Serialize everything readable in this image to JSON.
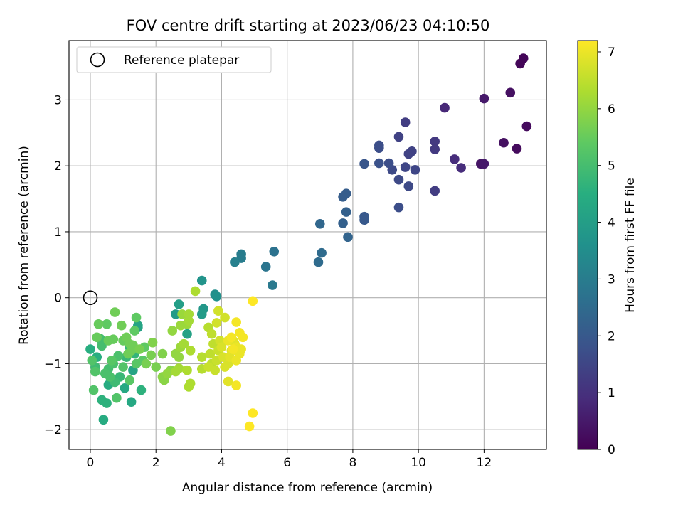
{
  "chart_data": {
    "type": "scatter",
    "title": "FOV centre drift starting at 2023/06/23 04:10:50",
    "xlabel": "Angular distance from reference (arcmin)",
    "ylabel": "Rotation from reference (arcmin)",
    "xlim": [
      -0.65,
      13.9
    ],
    "ylim": [
      -2.3,
      3.9
    ],
    "xticks": [
      0,
      2,
      4,
      6,
      8,
      10,
      12
    ],
    "yticks": [
      -2,
      -1,
      0,
      1,
      2,
      3
    ],
    "grid": true,
    "legend": {
      "placement": "top-left",
      "entries": [
        "Reference platepar"
      ]
    },
    "reference_point": {
      "x": 0,
      "y": 0
    },
    "colorbar": {
      "label": "Hours from first FF file",
      "range": [
        0,
        7.2
      ],
      "ticks": [
        0,
        1,
        2,
        3,
        4,
        5,
        6,
        7
      ],
      "colormap": "viridis"
    },
    "points": [
      {
        "x": 13.2,
        "y": 3.63,
        "h": 0.1
      },
      {
        "x": 13.1,
        "y": 3.55,
        "h": 0.1
      },
      {
        "x": 12.8,
        "y": 3.11,
        "h": 0.3
      },
      {
        "x": 13.3,
        "y": 2.6,
        "h": 0.2
      },
      {
        "x": 12.0,
        "y": 3.02,
        "h": 0.5
      },
      {
        "x": 12.6,
        "y": 2.35,
        "h": 0.3
      },
      {
        "x": 13.0,
        "y": 2.26,
        "h": 0.2
      },
      {
        "x": 11.9,
        "y": 2.03,
        "h": 0.4
      },
      {
        "x": 12.0,
        "y": 2.03,
        "h": 0.5
      },
      {
        "x": 10.8,
        "y": 2.88,
        "h": 0.8
      },
      {
        "x": 11.1,
        "y": 2.1,
        "h": 0.9
      },
      {
        "x": 11.3,
        "y": 1.97,
        "h": 0.9
      },
      {
        "x": 10.5,
        "y": 2.37,
        "h": 1.2
      },
      {
        "x": 10.5,
        "y": 2.25,
        "h": 1.2
      },
      {
        "x": 10.5,
        "y": 1.62,
        "h": 1.3
      },
      {
        "x": 9.6,
        "y": 2.66,
        "h": 1.3
      },
      {
        "x": 9.4,
        "y": 2.44,
        "h": 1.4
      },
      {
        "x": 9.8,
        "y": 2.22,
        "h": 1.4
      },
      {
        "x": 9.7,
        "y": 2.18,
        "h": 1.4
      },
      {
        "x": 9.6,
        "y": 1.98,
        "h": 1.5
      },
      {
        "x": 9.9,
        "y": 1.94,
        "h": 1.5
      },
      {
        "x": 9.7,
        "y": 1.69,
        "h": 1.6
      },
      {
        "x": 9.4,
        "y": 1.79,
        "h": 1.6
      },
      {
        "x": 9.4,
        "y": 1.37,
        "h": 1.7
      },
      {
        "x": 9.2,
        "y": 1.94,
        "h": 1.6
      },
      {
        "x": 9.1,
        "y": 2.04,
        "h": 1.7
      },
      {
        "x": 8.8,
        "y": 2.31,
        "h": 1.7
      },
      {
        "x": 8.8,
        "y": 2.27,
        "h": 1.7
      },
      {
        "x": 8.8,
        "y": 2.04,
        "h": 1.8
      },
      {
        "x": 8.35,
        "y": 2.03,
        "h": 1.9
      },
      {
        "x": 8.35,
        "y": 1.23,
        "h": 2.0
      },
      {
        "x": 8.35,
        "y": 1.18,
        "h": 2.0
      },
      {
        "x": 7.8,
        "y": 1.58,
        "h": 2.1
      },
      {
        "x": 7.7,
        "y": 1.53,
        "h": 2.1
      },
      {
        "x": 7.8,
        "y": 1.3,
        "h": 2.2
      },
      {
        "x": 7.7,
        "y": 1.13,
        "h": 2.2
      },
      {
        "x": 7.85,
        "y": 0.92,
        "h": 2.3
      },
      {
        "x": 7.0,
        "y": 1.12,
        "h": 2.4
      },
      {
        "x": 7.05,
        "y": 0.68,
        "h": 2.5
      },
      {
        "x": 6.95,
        "y": 0.54,
        "h": 2.5
      },
      {
        "x": 5.6,
        "y": 0.7,
        "h": 2.7
      },
      {
        "x": 5.35,
        "y": 0.47,
        "h": 2.8
      },
      {
        "x": 5.55,
        "y": 0.19,
        "h": 2.9
      },
      {
        "x": 4.6,
        "y": 0.66,
        "h": 3.0
      },
      {
        "x": 4.6,
        "y": 0.6,
        "h": 3.0
      },
      {
        "x": 4.4,
        "y": 0.54,
        "h": 3.1
      },
      {
        "x": 3.8,
        "y": 0.05,
        "h": 3.5
      },
      {
        "x": 3.85,
        "y": 0.02,
        "h": 3.6
      },
      {
        "x": 3.4,
        "y": 0.26,
        "h": 3.7
      },
      {
        "x": 3.45,
        "y": -0.17,
        "h": 3.8
      },
      {
        "x": 3.4,
        "y": -0.25,
        "h": 3.9
      },
      {
        "x": 2.6,
        "y": -0.25,
        "h": 3.9
      },
      {
        "x": 2.7,
        "y": -0.1,
        "h": 4.0
      },
      {
        "x": 2.95,
        "y": -0.55,
        "h": 4.1
      },
      {
        "x": 1.45,
        "y": -0.45,
        "h": 4.1
      },
      {
        "x": 1.45,
        "y": -0.42,
        "h": 4.2
      },
      {
        "x": 1.3,
        "y": -1.1,
        "h": 4.2
      },
      {
        "x": 1.05,
        "y": -1.37,
        "h": 4.3
      },
      {
        "x": 1.25,
        "y": -1.58,
        "h": 4.3
      },
      {
        "x": 0.55,
        "y": -1.32,
        "h": 4.4
      },
      {
        "x": 0.4,
        "y": -1.85,
        "h": 4.4
      },
      {
        "x": 0.2,
        "y": -0.9,
        "h": 4.5
      },
      {
        "x": 0.0,
        "y": -0.78,
        "h": 4.5
      },
      {
        "x": 0.35,
        "y": -1.55,
        "h": 4.6
      },
      {
        "x": 0.5,
        "y": -1.6,
        "h": 4.6
      },
      {
        "x": 1.55,
        "y": -1.4,
        "h": 4.6
      },
      {
        "x": 1.35,
        "y": -0.85,
        "h": 4.7
      },
      {
        "x": 1.2,
        "y": -0.75,
        "h": 4.7
      },
      {
        "x": 1.1,
        "y": -0.9,
        "h": 4.8
      },
      {
        "x": 0.9,
        "y": -1.2,
        "h": 4.8
      },
      {
        "x": 0.75,
        "y": -1.28,
        "h": 4.9
      },
      {
        "x": 0.15,
        "y": -1.05,
        "h": 4.9
      },
      {
        "x": 0.55,
        "y": -1.08,
        "h": 5.0
      },
      {
        "x": 0.35,
        "y": -0.73,
        "h": 5.0
      },
      {
        "x": 0.3,
        "y": -0.62,
        "h": 5.0
      },
      {
        "x": 0.6,
        "y": -1.2,
        "h": 5.1
      },
      {
        "x": 0.45,
        "y": -1.15,
        "h": 5.1
      },
      {
        "x": 0.7,
        "y": -1.0,
        "h": 5.1
      },
      {
        "x": 0.8,
        "y": -1.52,
        "h": 5.2
      },
      {
        "x": 0.1,
        "y": -1.4,
        "h": 5.2
      },
      {
        "x": 0.15,
        "y": -1.12,
        "h": 5.2
      },
      {
        "x": 1.0,
        "y": -1.05,
        "h": 5.2
      },
      {
        "x": 1.2,
        "y": -1.25,
        "h": 5.3
      },
      {
        "x": 1.4,
        "y": -1.0,
        "h": 5.3
      },
      {
        "x": 1.6,
        "y": -0.95,
        "h": 5.3
      },
      {
        "x": 1.65,
        "y": -0.75,
        "h": 5.4
      },
      {
        "x": 1.35,
        "y": -0.5,
        "h": 5.4
      },
      {
        "x": 1.4,
        "y": -0.3,
        "h": 5.4
      },
      {
        "x": 0.5,
        "y": -0.4,
        "h": 5.4
      },
      {
        "x": 0.25,
        "y": -0.4,
        "h": 5.5
      },
      {
        "x": 0.2,
        "y": -0.6,
        "h": 5.5
      },
      {
        "x": 0.7,
        "y": -0.63,
        "h": 5.5
      },
      {
        "x": 0.55,
        "y": -0.65,
        "h": 5.5
      },
      {
        "x": 1.0,
        "y": -0.65,
        "h": 5.5
      },
      {
        "x": 1.1,
        "y": -0.6,
        "h": 5.6
      },
      {
        "x": 1.2,
        "y": -0.7,
        "h": 5.6
      },
      {
        "x": 1.3,
        "y": -0.72,
        "h": 5.6
      },
      {
        "x": 1.25,
        "y": -0.8,
        "h": 5.6
      },
      {
        "x": 1.15,
        "y": -0.85,
        "h": 5.6
      },
      {
        "x": 1.5,
        "y": -0.78,
        "h": 5.7
      },
      {
        "x": 1.85,
        "y": -0.87,
        "h": 5.7
      },
      {
        "x": 1.7,
        "y": -1.0,
        "h": 5.7
      },
      {
        "x": 2.0,
        "y": -1.05,
        "h": 5.7
      },
      {
        "x": 1.9,
        "y": -0.68,
        "h": 5.8
      },
      {
        "x": 2.2,
        "y": -0.85,
        "h": 5.8
      },
      {
        "x": 0.75,
        "y": -0.22,
        "h": 5.6
      },
      {
        "x": 0.95,
        "y": -0.42,
        "h": 5.6
      },
      {
        "x": 0.05,
        "y": -0.95,
        "h": 5.2
      },
      {
        "x": 0.85,
        "y": -0.88,
        "h": 5.1
      },
      {
        "x": 0.65,
        "y": -0.95,
        "h": 5.3
      },
      {
        "x": 2.45,
        "y": -2.02,
        "h": 5.8
      },
      {
        "x": 2.2,
        "y": -1.2,
        "h": 5.9
      },
      {
        "x": 2.25,
        "y": -1.25,
        "h": 5.9
      },
      {
        "x": 2.45,
        "y": -1.1,
        "h": 5.9
      },
      {
        "x": 2.35,
        "y": -1.15,
        "h": 6.0
      },
      {
        "x": 2.5,
        "y": -0.5,
        "h": 6.0
      },
      {
        "x": 2.6,
        "y": -0.85,
        "h": 6.0
      },
      {
        "x": 2.7,
        "y": -0.9,
        "h": 6.0
      },
      {
        "x": 2.75,
        "y": -0.75,
        "h": 6.1
      },
      {
        "x": 2.75,
        "y": -0.42,
        "h": 6.1
      },
      {
        "x": 2.8,
        "y": -0.25,
        "h": 6.1
      },
      {
        "x": 2.95,
        "y": -0.4,
        "h": 6.1
      },
      {
        "x": 3.0,
        "y": -0.25,
        "h": 6.2
      },
      {
        "x": 3.0,
        "y": -0.35,
        "h": 6.2
      },
      {
        "x": 2.85,
        "y": -0.7,
        "h": 6.2
      },
      {
        "x": 2.7,
        "y": -1.07,
        "h": 6.2
      },
      {
        "x": 2.6,
        "y": -1.12,
        "h": 6.2
      },
      {
        "x": 3.0,
        "y": -1.35,
        "h": 6.3
      },
      {
        "x": 3.05,
        "y": -1.3,
        "h": 6.3
      },
      {
        "x": 3.05,
        "y": -0.8,
        "h": 6.3
      },
      {
        "x": 3.2,
        "y": 0.1,
        "h": 6.3
      },
      {
        "x": 2.95,
        "y": -1.1,
        "h": 6.3
      },
      {
        "x": 3.4,
        "y": -0.9,
        "h": 6.4
      },
      {
        "x": 3.4,
        "y": -1.08,
        "h": 6.4
      },
      {
        "x": 3.6,
        "y": -0.45,
        "h": 6.4
      },
      {
        "x": 3.7,
        "y": -0.55,
        "h": 6.5
      },
      {
        "x": 3.75,
        "y": -0.7,
        "h": 6.5
      },
      {
        "x": 3.65,
        "y": -0.85,
        "h": 6.5
      },
      {
        "x": 3.7,
        "y": -1.0,
        "h": 6.5
      },
      {
        "x": 3.6,
        "y": -1.05,
        "h": 6.6
      },
      {
        "x": 3.8,
        "y": -1.1,
        "h": 6.6
      },
      {
        "x": 3.85,
        "y": -0.95,
        "h": 6.6
      },
      {
        "x": 3.9,
        "y": -0.8,
        "h": 6.6
      },
      {
        "x": 3.95,
        "y": -0.65,
        "h": 6.7
      },
      {
        "x": 3.85,
        "y": -0.38,
        "h": 6.7
      },
      {
        "x": 3.9,
        "y": -0.2,
        "h": 6.7
      },
      {
        "x": 4.1,
        "y": -0.3,
        "h": 6.7
      },
      {
        "x": 4.0,
        "y": -0.75,
        "h": 6.8
      },
      {
        "x": 4.05,
        "y": -0.9,
        "h": 6.8
      },
      {
        "x": 4.1,
        "y": -1.05,
        "h": 6.8
      },
      {
        "x": 4.2,
        "y": -1.0,
        "h": 6.8
      },
      {
        "x": 4.25,
        "y": -0.9,
        "h": 6.9
      },
      {
        "x": 4.3,
        "y": -0.8,
        "h": 6.9
      },
      {
        "x": 4.35,
        "y": -0.65,
        "h": 6.9
      },
      {
        "x": 4.4,
        "y": -0.7,
        "h": 6.9
      },
      {
        "x": 4.45,
        "y": -0.75,
        "h": 7.0
      },
      {
        "x": 4.5,
        "y": -0.82,
        "h": 7.0
      },
      {
        "x": 4.55,
        "y": -0.85,
        "h": 7.0
      },
      {
        "x": 4.45,
        "y": -0.95,
        "h": 7.0
      },
      {
        "x": 4.6,
        "y": -0.78,
        "h": 7.0
      },
      {
        "x": 4.2,
        "y": -1.27,
        "h": 6.9
      },
      {
        "x": 4.45,
        "y": -1.33,
        "h": 7.1
      },
      {
        "x": 4.45,
        "y": -0.37,
        "h": 7.1
      },
      {
        "x": 4.55,
        "y": -0.53,
        "h": 7.1
      },
      {
        "x": 4.65,
        "y": -0.6,
        "h": 7.1
      },
      {
        "x": 4.3,
        "y": -0.6,
        "h": 7.1
      },
      {
        "x": 4.2,
        "y": -0.65,
        "h": 7.0
      },
      {
        "x": 4.35,
        "y": -0.78,
        "h": 7.1
      },
      {
        "x": 4.95,
        "y": -0.05,
        "h": 7.2
      },
      {
        "x": 4.95,
        "y": -1.75,
        "h": 7.2
      },
      {
        "x": 4.85,
        "y": -1.95,
        "h": 7.2
      }
    ]
  }
}
